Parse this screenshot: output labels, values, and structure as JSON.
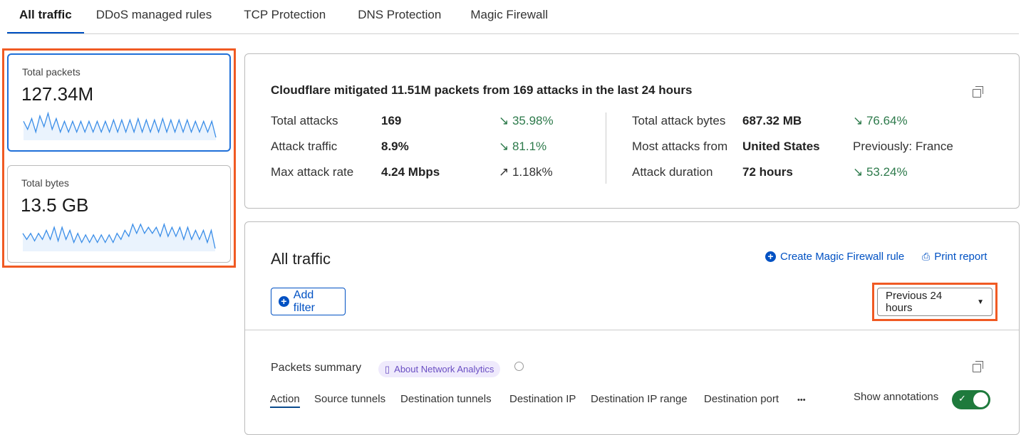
{
  "tabs": [
    {
      "label": "All traffic",
      "active": true
    },
    {
      "label": "DDoS managed rules"
    },
    {
      "label": "TCP Protection"
    },
    {
      "label": "DNS Protection"
    },
    {
      "label": "Magic Firewall"
    }
  ],
  "metrics": [
    {
      "label": "Total packets",
      "value": "127.34M",
      "selected": true,
      "sparkline": [
        5,
        2,
        6,
        1,
        7,
        3,
        8,
        2,
        6,
        1,
        5,
        1,
        5,
        1,
        5,
        1,
        5,
        1,
        5,
        1,
        5,
        1,
        5.5,
        1,
        5.5,
        1,
        5.5,
        1,
        6,
        1,
        5.5,
        1,
        5.5,
        1,
        6,
        1,
        5.5,
        1,
        5.5,
        1,
        5.5,
        1,
        5,
        1,
        5,
        1,
        5,
        -1
      ]
    },
    {
      "label": "Total bytes",
      "value": "13.5 GB",
      "selected": false,
      "sparkline": [
        4,
        2,
        4,
        1.5,
        4,
        2,
        5,
        2,
        6,
        1.5,
        6,
        2,
        5,
        1,
        4,
        1,
        3.5,
        1,
        3.5,
        1,
        3.5,
        1,
        3.5,
        1,
        4,
        2,
        5,
        3,
        7,
        4,
        7,
        4,
        6,
        4,
        6,
        3,
        7,
        3,
        6,
        3,
        6,
        2,
        6,
        2,
        5,
        2,
        5,
        1,
        5,
        -1
      ]
    }
  ],
  "summary": {
    "title": "Cloudflare mitigated 11.51M packets from 169 attacks in the last 24 hours",
    "left": [
      {
        "label": "Total attacks",
        "value": "169",
        "change": "35.98%",
        "trend": "down"
      },
      {
        "label": "Attack traffic",
        "value": "8.9%",
        "change": "81.1%",
        "trend": "down"
      },
      {
        "label": "Max attack rate",
        "value": "4.24 Mbps",
        "change": "1.18k%",
        "trend": "up"
      }
    ],
    "right": [
      {
        "label": "Total attack bytes",
        "value": "687.32 MB",
        "change": "76.64%",
        "trend": "down"
      },
      {
        "label": "Most attacks from",
        "value": "United States",
        "change": "Previously: France",
        "trend": "none"
      },
      {
        "label": "Attack duration",
        "value": "72 hours",
        "change": "53.24%",
        "trend": "down"
      }
    ]
  },
  "traffic": {
    "title": "All traffic",
    "create_rule": "Create Magic Firewall rule",
    "print_report": "Print report",
    "add_filter": "Add filter",
    "time_range": "Previous 24 hours",
    "packets_summary": "Packets summary",
    "about_badge": "About Network Analytics",
    "subtabs": [
      "Action",
      "Source tunnels",
      "Destination tunnels",
      "Destination IP",
      "Destination IP range",
      "Destination port"
    ],
    "more": "•••",
    "show_annotations": "Show annotations",
    "annotations_on": true
  },
  "colors": {
    "accent": "#0051c3",
    "highlight": "#f05a23",
    "positive": "#2d7a4b",
    "toggle": "#1e7a3c",
    "sparkline": "#3b8ee8"
  }
}
